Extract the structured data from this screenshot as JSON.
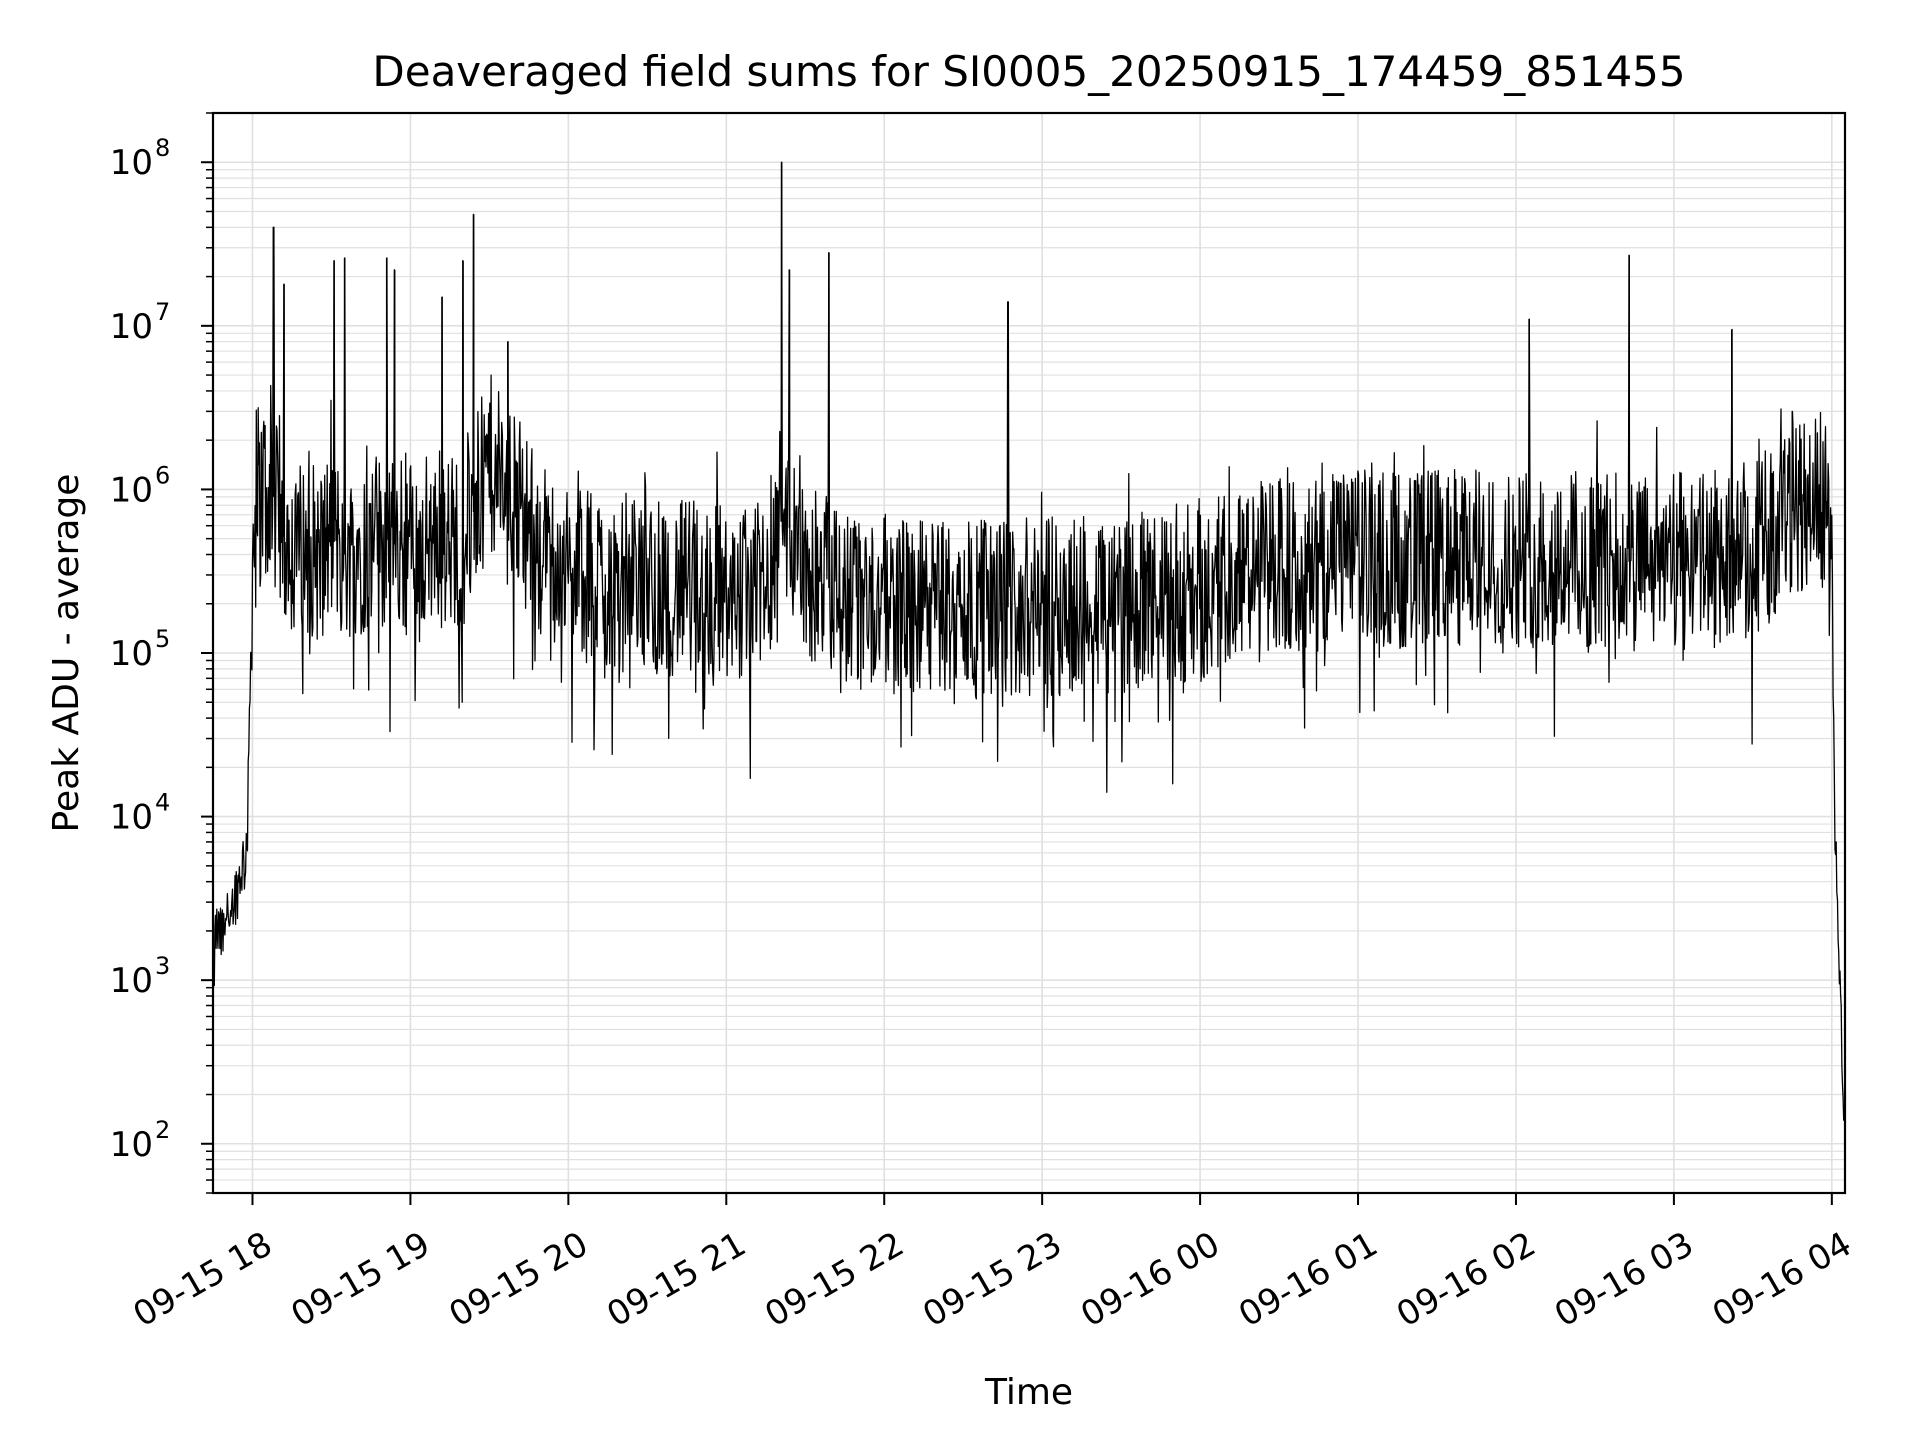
{
  "chart_data": {
    "type": "line",
    "title": "Deaveraged field sums for SI0005_20250915_174459_851455",
    "xlabel": "Time",
    "ylabel": "Peak ADU - average",
    "yscale": "log",
    "ylim": [
      50,
      200000000
    ],
    "xlim": [
      "2025-09-15T17:45:00",
      "2025-09-16T04:05:00"
    ],
    "grid": true,
    "legend": "none",
    "line_color": "#000000",
    "grid_color": "#e0e0e0",
    "x_ticks": [
      {
        "t": "2025-09-15T18:00:00",
        "label": "09-15 18"
      },
      {
        "t": "2025-09-15T19:00:00",
        "label": "09-15 19"
      },
      {
        "t": "2025-09-15T20:00:00",
        "label": "09-15 20"
      },
      {
        "t": "2025-09-15T21:00:00",
        "label": "09-15 21"
      },
      {
        "t": "2025-09-15T22:00:00",
        "label": "09-15 22"
      },
      {
        "t": "2025-09-15T23:00:00",
        "label": "09-15 23"
      },
      {
        "t": "2025-09-16T00:00:00",
        "label": "09-16 00"
      },
      {
        "t": "2025-09-16T01:00:00",
        "label": "09-16 01"
      },
      {
        "t": "2025-09-16T02:00:00",
        "label": "09-16 02"
      },
      {
        "t": "2025-09-16T03:00:00",
        "label": "09-16 03"
      },
      {
        "t": "2025-09-16T04:00:00",
        "label": "09-16 04"
      }
    ],
    "y_ticks": [
      {
        "value": 100,
        "base": "10",
        "exp": "2"
      },
      {
        "value": 1000,
        "base": "10",
        "exp": "3"
      },
      {
        "value": 10000,
        "base": "10",
        "exp": "4"
      },
      {
        "value": 100000,
        "base": "10",
        "exp": "5"
      },
      {
        "value": 1000000,
        "base": "10",
        "exp": "6"
      },
      {
        "value": 10000000,
        "base": "10",
        "exp": "7"
      },
      {
        "value": 100000000,
        "base": "10",
        "exp": "8"
      }
    ],
    "series": [
      {
        "x": [
          "2025-09-15T17:45:00",
          "2025-09-15T17:46:00",
          "2025-09-15T17:48:00",
          "2025-09-15T17:50:00",
          "2025-09-15T17:52:00",
          "2025-09-15T17:54:00",
          "2025-09-15T17:56:00",
          "2025-09-15T17:58:00",
          "2025-09-15T18:00:00",
          "2025-09-15T18:02:00",
          "2025-09-15T18:05:00",
          "2025-09-15T18:08:00",
          "2025-09-15T18:10:00",
          "2025-09-15T18:15:00",
          "2025-09-15T18:20:00",
          "2025-09-15T18:25:00",
          "2025-09-15T18:30:00",
          "2025-09-15T18:35:00",
          "2025-09-15T18:40:00",
          "2025-09-15T18:45:00",
          "2025-09-15T18:50:00",
          "2025-09-15T18:55:00",
          "2025-09-15T19:00:00",
          "2025-09-15T19:10:00",
          "2025-09-15T19:20:00",
          "2025-09-15T19:25:00",
          "2025-09-15T19:30:00",
          "2025-09-15T19:35:00",
          "2025-09-15T19:40:00",
          "2025-09-15T19:45:00",
          "2025-09-15T19:50:00",
          "2025-09-15T20:00:00",
          "2025-09-15T20:15:00",
          "2025-09-15T20:30:00",
          "2025-09-15T20:45:00",
          "2025-09-15T21:00:00",
          "2025-09-15T21:15:00",
          "2025-09-15T21:20:00",
          "2025-09-15T21:30:00",
          "2025-09-15T21:45:00",
          "2025-09-15T22:00:00",
          "2025-09-15T22:15:00",
          "2025-09-15T22:30:00",
          "2025-09-15T22:45:00",
          "2025-09-15T23:00:00",
          "2025-09-15T23:15:00",
          "2025-09-15T23:30:00",
          "2025-09-15T23:45:00",
          "2025-09-16T00:00:00",
          "2025-09-16T00:15:00",
          "2025-09-16T00:30:00",
          "2025-09-16T00:45:00",
          "2025-09-16T01:00:00",
          "2025-09-16T01:15:00",
          "2025-09-16T01:30:00",
          "2025-09-16T01:45:00",
          "2025-09-16T02:00:00",
          "2025-09-16T02:15:00",
          "2025-09-16T02:30:00",
          "2025-09-16T02:45:00",
          "2025-09-16T03:00:00",
          "2025-09-16T03:15:00",
          "2025-09-16T03:30:00",
          "2025-09-16T03:40:00",
          "2025-09-16T03:50:00",
          "2025-09-16T03:55:00",
          "2025-09-16T03:58:00",
          "2025-09-16T04:00:00",
          "2025-09-16T04:01:00",
          "2025-09-16T04:02:00",
          "2025-09-16T04:03:00",
          "2025-09-16T04:04:00",
          "2025-09-16T04:05:00"
        ],
        "y": [
          800,
          2000,
          1800,
          2500,
          3000,
          3500,
          5000,
          7000,
          400000,
          900000,
          1100000,
          900000,
          600000,
          400000,
          450000,
          400000,
          500000,
          400000,
          450000,
          450000,
          500000,
          450000,
          450000,
          500000,
          500000,
          800000,
          1500000,
          1000000,
          800000,
          600000,
          450000,
          300000,
          280000,
          260000,
          250000,
          240000,
          230000,
          900000,
          300000,
          220000,
          200000,
          190000,
          190000,
          190000,
          190000,
          200000,
          200000,
          210000,
          250000,
          300000,
          330000,
          360000,
          380000,
          380000,
          380000,
          380000,
          380000,
          380000,
          370000,
          360000,
          360000,
          380000,
          450000,
          600000,
          900000,
          1000000,
          600000,
          300000,
          10000,
          3000,
          1000,
          300,
          100
        ]
      }
    ],
    "spikes": [
      {
        "t": "2025-09-15T18:08:00",
        "value": 40000000
      },
      {
        "t": "2025-09-15T18:12:00",
        "value": 18000000
      },
      {
        "t": "2025-09-15T18:31:00",
        "value": 25000000
      },
      {
        "t": "2025-09-15T18:35:00",
        "value": 26000000
      },
      {
        "t": "2025-09-15T18:51:00",
        "value": 26000000
      },
      {
        "t": "2025-09-15T18:54:00",
        "value": 22000000
      },
      {
        "t": "2025-09-15T19:12:00",
        "value": 15000000
      },
      {
        "t": "2025-09-15T19:20:00",
        "value": 25000000
      },
      {
        "t": "2025-09-15T19:24:00",
        "value": 48000000
      },
      {
        "t": "2025-09-15T19:37:00",
        "value": 8000000
      },
      {
        "t": "2025-09-15T21:21:00",
        "value": 100000000
      },
      {
        "t": "2025-09-15T21:24:00",
        "value": 22000000
      },
      {
        "t": "2025-09-15T21:39:00",
        "value": 28000000
      },
      {
        "t": "2025-09-15T22:47:00",
        "value": 14000000
      },
      {
        "t": "2025-09-16T02:05:00",
        "value": 11000000
      },
      {
        "t": "2025-09-16T02:43:00",
        "value": 27000000
      },
      {
        "t": "2025-09-16T03:22:00",
        "value": 9500000
      },
      {
        "t": "2025-09-16T03:45:00",
        "value": 3000000
      }
    ],
    "noise_decades": 0.55
  }
}
